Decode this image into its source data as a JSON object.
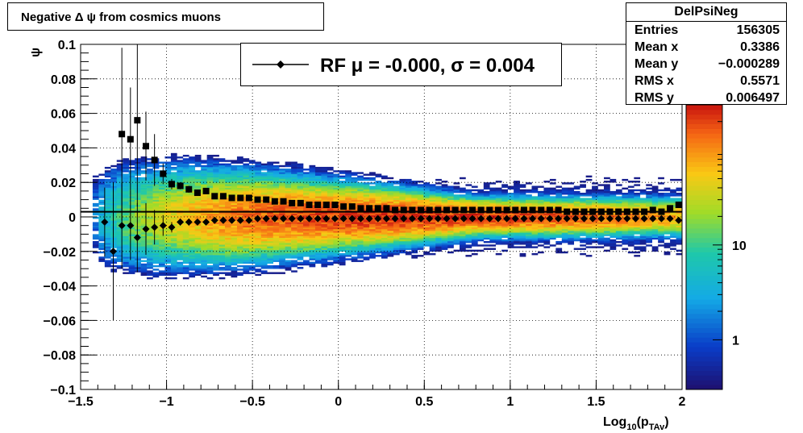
{
  "title": "Negative Δ ψ from cosmics muons",
  "stats": {
    "name": "DelPsiNeg",
    "rows": [
      {
        "label": "Entries",
        "value": "156305"
      },
      {
        "label": "Mean x",
        "value": "0.3386"
      },
      {
        "label": "Mean y",
        "value": "−0.000289"
      },
      {
        "label": "RMS x",
        "value": "0.5571"
      },
      {
        "label": "RMS y",
        "value": "0.006497"
      }
    ]
  },
  "legend": {
    "label": "RF μ = -0.000, σ =   0.004"
  },
  "chart_data": {
    "type": "heatmap",
    "title": "Negative Δ ψ from cosmics muons",
    "xlabel_main": "Log",
    "xlabel_sub1": "10",
    "xlabel_mid": "(p",
    "xlabel_sub2": "TAv",
    "xlabel_end": ")",
    "ylabel": "ψ",
    "xlim": [
      -1.5,
      2
    ],
    "ylim": [
      -0.1,
      0.1
    ],
    "x_ticks": [
      "−1.5",
      "−1",
      "−0.5",
      "0",
      "0.5",
      "1",
      "1.5",
      "2"
    ],
    "x_tick_values": [
      -1.5,
      -1,
      -0.5,
      0,
      0.5,
      1,
      1.5,
      2
    ],
    "y_ticks": [
      "−0.1",
      "−0.08",
      "−0.06",
      "−0.04",
      "−0.02",
      "0",
      "0.02",
      "0.04",
      "0.06",
      "0.08",
      "0.1"
    ],
    "y_tick_values": [
      -0.1,
      -0.08,
      -0.06,
      -0.04,
      -0.02,
      0,
      0.02,
      0.04,
      0.06,
      0.08,
      0.1
    ],
    "grid": true,
    "colorbar": {
      "scale": "log",
      "min": 0.3,
      "max": 300,
      "tick_labels": [
        "1",
        "10"
      ],
      "tick_values": [
        1,
        10
      ]
    },
    "reference_line_y": 0.003,
    "series": [
      {
        "name": "RF",
        "marker": "diamond",
        "x": [
          -1.36,
          -1.31,
          -1.26,
          -1.21,
          -1.17,
          -1.12,
          -1.07,
          -1.02,
          -0.97,
          -0.92,
          -0.87,
          -0.82,
          -0.77,
          -0.72,
          -0.67,
          -0.62,
          -0.57,
          -0.52,
          -0.47,
          -0.42,
          -0.37,
          -0.32,
          -0.27,
          -0.22,
          -0.17,
          -0.12,
          -0.07,
          -0.02,
          0.03,
          0.08,
          0.13,
          0.18,
          0.23,
          0.28,
          0.33,
          0.38,
          0.43,
          0.48,
          0.53,
          0.58,
          0.63,
          0.68,
          0.73,
          0.78,
          0.83,
          0.88,
          0.93,
          0.98,
          1.03,
          1.08,
          1.13,
          1.18,
          1.23,
          1.28,
          1.33,
          1.38,
          1.43,
          1.48,
          1.53,
          1.58,
          1.63,
          1.68,
          1.73,
          1.78,
          1.83,
          1.88,
          1.93,
          1.98
        ],
        "values": [
          -0.003,
          -0.02,
          -0.005,
          -0.005,
          -0.012,
          -0.007,
          -0.006,
          -0.005,
          -0.006,
          -0.003,
          -0.003,
          -0.003,
          -0.003,
          -0.002,
          -0.002,
          -0.002,
          -0.002,
          -0.002,
          -0.001,
          -0.001,
          -0.001,
          -0.001,
          -0.001,
          -0.001,
          -0.001,
          -0.001,
          -0.001,
          -0.001,
          -0.001,
          -0.001,
          -0.001,
          -0.001,
          -0.001,
          -0.001,
          -0.001,
          -0.001,
          -0.001,
          -0.001,
          -0.001,
          -0.001,
          -0.001,
          -0.001,
          -0.001,
          -0.001,
          -0.001,
          -0.001,
          -0.001,
          -0.001,
          -0.001,
          -0.001,
          -0.001,
          -0.001,
          -0.001,
          -0.001,
          -0.001,
          -0.001,
          -0.001,
          -0.001,
          -0.001,
          -0.001,
          -0.001,
          -0.001,
          -0.001,
          -0.001,
          -0.001,
          -0.001,
          -0.001,
          -0.002
        ],
        "errors": [
          0.02,
          0.04,
          0.025,
          0.02,
          0.02,
          0.015,
          0.01,
          0.006,
          0.003,
          0.002,
          0.002,
          0.001,
          0.001,
          0.001,
          0.001,
          0.001,
          0.001,
          0.001,
          0.001,
          0.001,
          0.001,
          0.001,
          0.001,
          0.001,
          0.001,
          0.001,
          0.001,
          0.001,
          0.001,
          0.001,
          0.001,
          0.001,
          0.001,
          0.001,
          0.001,
          0.001,
          0.001,
          0.001,
          0.001,
          0.001,
          0.001,
          0.001,
          0.001,
          0.001,
          0.001,
          0.001,
          0.001,
          0.001,
          0.001,
          0.001,
          0.001,
          0.001,
          0.001,
          0.001,
          0.001,
          0.001,
          0.001,
          0.001,
          0.001,
          0.001,
          0.001,
          0.001,
          0.001,
          0.001,
          0.001,
          0.001,
          0.001,
          0.001
        ]
      },
      {
        "name": "",
        "marker": "square",
        "x": [
          -1.26,
          -1.21,
          -1.17,
          -1.12,
          -1.07,
          -1.02,
          -0.97,
          -0.92,
          -0.87,
          -0.82,
          -0.77,
          -0.72,
          -0.67,
          -0.62,
          -0.57,
          -0.52,
          -0.47,
          -0.42,
          -0.37,
          -0.32,
          -0.27,
          -0.22,
          -0.17,
          -0.12,
          -0.07,
          -0.02,
          0.03,
          0.08,
          0.13,
          0.18,
          0.23,
          0.28,
          0.33,
          0.38,
          0.43,
          0.48,
          0.53,
          0.58,
          0.63,
          0.68,
          0.73,
          0.78,
          0.83,
          0.88,
          0.93,
          0.98,
          1.03,
          1.08,
          1.13,
          1.18,
          1.23,
          1.28,
          1.33,
          1.38,
          1.43,
          1.48,
          1.53,
          1.58,
          1.63,
          1.68,
          1.73,
          1.78,
          1.83,
          1.88,
          1.93,
          1.98
        ],
        "values": [
          0.048,
          0.045,
          0.056,
          0.041,
          0.033,
          0.025,
          0.019,
          0.018,
          0.016,
          0.014,
          0.015,
          0.012,
          0.012,
          0.011,
          0.011,
          0.011,
          0.01,
          0.01,
          0.009,
          0.009,
          0.008,
          0.008,
          0.007,
          0.007,
          0.007,
          0.007,
          0.006,
          0.006,
          0.005,
          0.005,
          0.005,
          0.005,
          0.004,
          0.004,
          0.004,
          0.004,
          0.004,
          0.004,
          0.004,
          0.004,
          0.004,
          0.004,
          0.004,
          0.004,
          0.004,
          0.004,
          0.004,
          0.004,
          0.004,
          0.004,
          0.004,
          0.004,
          0.003,
          0.003,
          0.003,
          0.003,
          0.003,
          0.003,
          0.003,
          0.003,
          0.003,
          0.003,
          0.004,
          0.003,
          0.005,
          0.007
        ],
        "errors": [
          0.05,
          0.03,
          0.05,
          0.02,
          0.015,
          0.006,
          0.003,
          0.002,
          0.002,
          0.001,
          0.001,
          0.001,
          0.001,
          0.001,
          0.001,
          0.001,
          0.001,
          0.001,
          0.001,
          0.001,
          0.001,
          0.001,
          0.001,
          0.001,
          0.001,
          0.001,
          0.001,
          0.001,
          0.001,
          0.001,
          0.001,
          0.001,
          0.001,
          0.001,
          0.001,
          0.001,
          0.001,
          0.001,
          0.001,
          0.001,
          0.001,
          0.001,
          0.001,
          0.001,
          0.001,
          0.001,
          0.001,
          0.001,
          0.001,
          0.001,
          0.001,
          0.001,
          0.001,
          0.001,
          0.001,
          0.001,
          0.001,
          0.001,
          0.001,
          0.001,
          0.001,
          0.001,
          0.001,
          0.001,
          0.001,
          0.001
        ]
      }
    ]
  }
}
